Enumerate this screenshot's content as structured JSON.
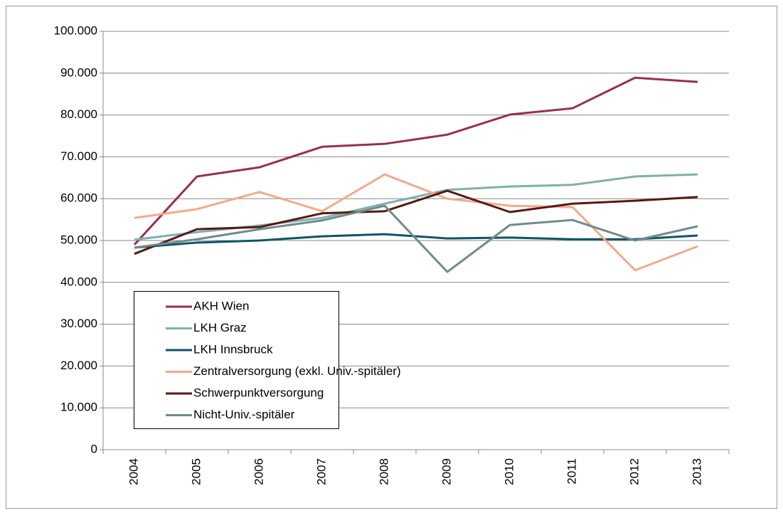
{
  "chart_data": {
    "type": "line",
    "categories": [
      "2004",
      "2005",
      "2006",
      "2007",
      "2008",
      "2009",
      "2010",
      "2011",
      "2012",
      "2013"
    ],
    "series": [
      {
        "name": "AKH Wien",
        "color": "#97304f",
        "values": [
          49000,
          65300,
          67500,
          72400,
          73100,
          75300,
          80100,
          81600,
          88900,
          87900
        ]
      },
      {
        "name": "LKH Graz",
        "color": "#7fb0ae",
        "values": [
          50200,
          52000,
          53600,
          55400,
          58800,
          62100,
          62900,
          63300,
          65300,
          65800
        ]
      },
      {
        "name": "LKH Innsbruck",
        "color": "#0d5566",
        "values": [
          48300,
          49500,
          50000,
          51000,
          51500,
          50500,
          50700,
          50300,
          50300,
          51200
        ]
      },
      {
        "name": "Zentralversorgung (exkl. Univ.-spitäler)",
        "color": "#f2aa8c",
        "values": [
          55400,
          57500,
          61600,
          57000,
          65800,
          60000,
          58300,
          58000,
          42900,
          48600
        ]
      },
      {
        "name": "Schwerpunktversorgung",
        "color": "#561a10",
        "values": [
          46800,
          52700,
          53200,
          56500,
          57000,
          61900,
          56800,
          58800,
          59500,
          60400
        ]
      },
      {
        "name": "Nicht-Univ.-spitäler",
        "color": "#6f8c8c",
        "values": [
          48300,
          50300,
          52700,
          54800,
          58300,
          42500,
          53700,
          54900,
          50000,
          53400
        ]
      }
    ],
    "ylim": [
      0,
      100000
    ],
    "yticks": [
      0,
      {
        "value": 10000,
        "label": "10.000"
      },
      {
        "value": 20000,
        "label": "20.000"
      },
      {
        "value": 30000,
        "label": "30.000"
      },
      {
        "value": 40000,
        "label": "40.000"
      },
      {
        "value": 50000,
        "label": "50.000"
      },
      {
        "value": 60000,
        "label": "60.000"
      },
      {
        "value": 70000,
        "label": "70.000"
      },
      {
        "value": 80000,
        "label": "80.000"
      },
      {
        "value": 90000,
        "label": "90.000"
      },
      {
        "value": 100000,
        "label": "100.000"
      }
    ],
    "grid": true,
    "legend_position": "lower-left"
  }
}
